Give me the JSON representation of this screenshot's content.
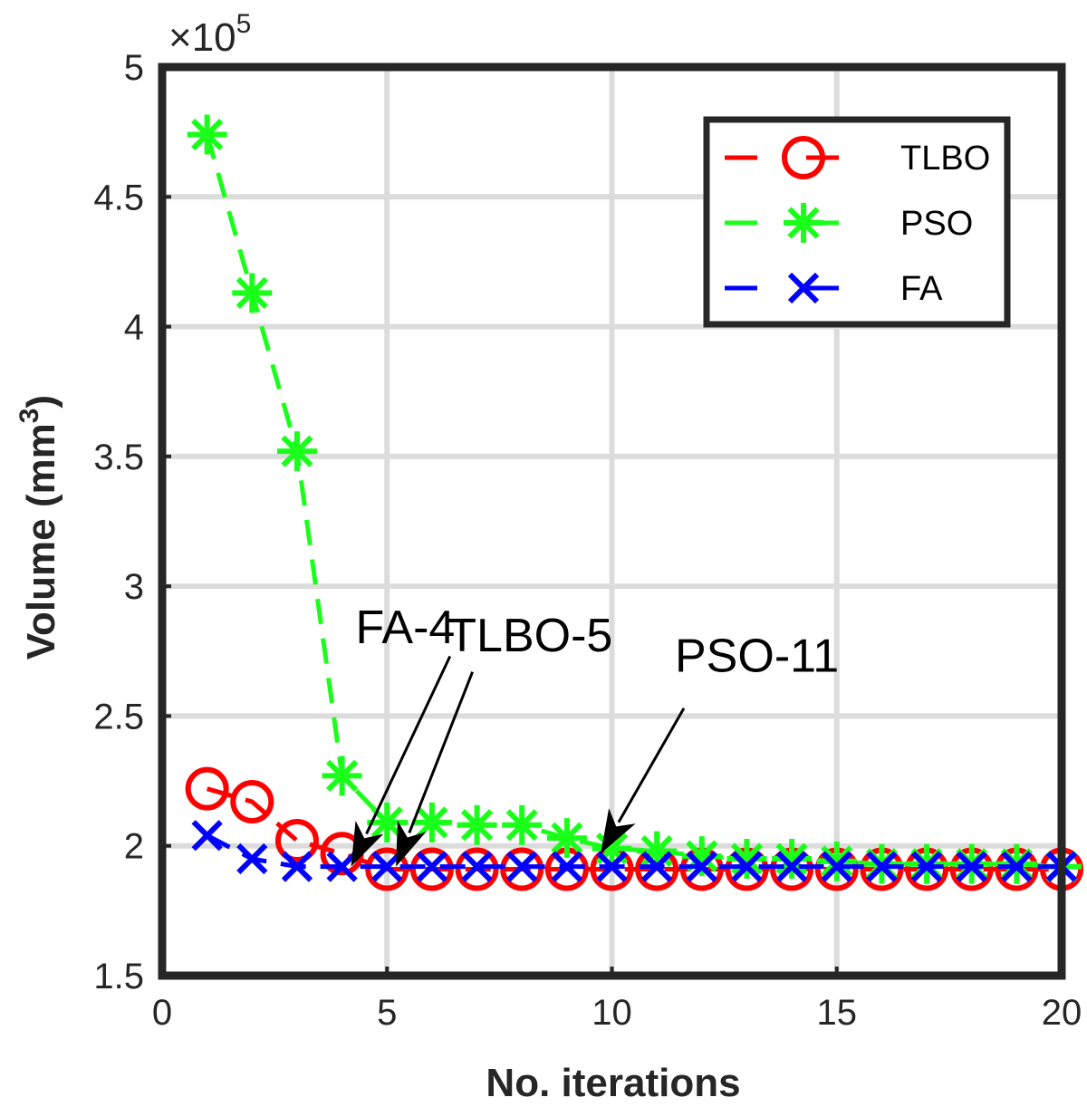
{
  "chart_data": {
    "type": "line",
    "title": "",
    "xlabel": "No. iterations",
    "ylabel_main": "Volume (mm",
    "ylabel_sup": "3",
    "ylabel_close": ")",
    "multiplier_prefix": "×10",
    "multiplier_exp": "5",
    "xlim": [
      0,
      20
    ],
    "ylim": [
      1.5,
      5
    ],
    "xticks": [
      0,
      5,
      10,
      15,
      20
    ],
    "xtick_labels": [
      "0",
      "5",
      "10",
      "15",
      "20"
    ],
    "yticks": [
      1.5,
      2,
      2.5,
      3,
      3.5,
      4,
      4.5,
      5
    ],
    "ytick_labels": [
      "1.5",
      "2",
      "2.5",
      "3",
      "3.5",
      "4",
      "4.5",
      "5"
    ],
    "grid": true,
    "legend_position": "top-right",
    "x": [
      1,
      2,
      3,
      4,
      5,
      6,
      7,
      8,
      9,
      10,
      11,
      12,
      13,
      14,
      15,
      16,
      17,
      18,
      19,
      20
    ],
    "series": [
      {
        "name": "TLBO",
        "color": "#ff0000",
        "marker": "circle",
        "values": [
          2.22,
          2.17,
          2.02,
          1.97,
          1.91,
          1.91,
          1.91,
          1.91,
          1.91,
          1.91,
          1.91,
          1.91,
          1.91,
          1.91,
          1.91,
          1.91,
          1.91,
          1.91,
          1.91,
          1.91
        ]
      },
      {
        "name": "PSO",
        "color": "#1aff1a",
        "marker": "asterisk",
        "values": [
          4.74,
          4.13,
          3.52,
          2.27,
          2.09,
          2.09,
          2.08,
          2.08,
          2.03,
          1.99,
          1.98,
          1.96,
          1.95,
          1.95,
          1.94,
          1.93,
          1.93,
          1.93,
          1.93,
          1.92
        ]
      },
      {
        "name": "FA",
        "color": "#0000ff",
        "marker": "x",
        "values": [
          2.04,
          1.95,
          1.92,
          1.92,
          1.92,
          1.92,
          1.92,
          1.92,
          1.92,
          1.92,
          1.92,
          1.92,
          1.92,
          1.92,
          1.92,
          1.92,
          1.92,
          1.92,
          1.92,
          1.92
        ]
      }
    ],
    "annotations": [
      {
        "text": "FA-4",
        "label_x": 4.3,
        "label_y": 2.78,
        "tail_x": 6.4,
        "tail_y": 2.73,
        "head_x": 4.2,
        "head_y": 1.92
      },
      {
        "text": "TLBO-5",
        "label_x": 6.35,
        "label_y": 2.75,
        "tail_x": 6.9,
        "tail_y": 2.67,
        "head_x": 5.2,
        "head_y": 1.92
      },
      {
        "text": "PSO-11",
        "label_x": 11.4,
        "label_y": 2.67,
        "tail_x": 11.6,
        "tail_y": 2.53,
        "head_x": 9.75,
        "head_y": 1.97
      }
    ]
  }
}
